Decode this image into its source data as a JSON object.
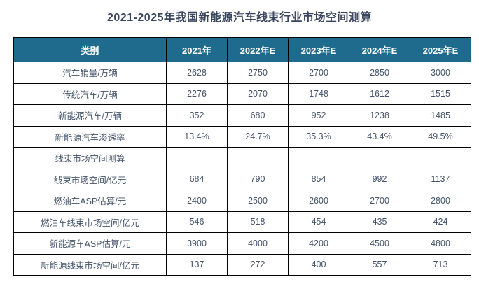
{
  "title": "2021-2025年我国新能源汽车线束行业市场空间测算",
  "colors": {
    "header_bg": "#1f6b8d",
    "header_text": "#ffffff",
    "title_text": "#3a4660",
    "cell_text": "#44546a",
    "border": "#000000",
    "page_bg": "#ffffff"
  },
  "chart_data": {
    "type": "table",
    "title": "2021-2025年我国新能源汽车线束行业市场空间测算",
    "columns": [
      "类别",
      "2021年",
      "2022年E",
      "2023年E",
      "2024年E",
      "2025年E"
    ],
    "rows": [
      {
        "label": "汽车销量/万辆",
        "values": [
          "2628",
          "2750",
          "2700",
          "2850",
          "3000"
        ]
      },
      {
        "label": "传统汽车/万辆",
        "values": [
          "2276",
          "2070",
          "1748",
          "1612",
          "1515"
        ]
      },
      {
        "label": "新能源汽车/万辆",
        "values": [
          "352",
          "680",
          "952",
          "1238",
          "1485"
        ]
      },
      {
        "label": "新能源汽车渗透率",
        "values": [
          "13.4%",
          "24.7%",
          "35.3%",
          "43.4%",
          "49.5%"
        ]
      },
      {
        "label": "线束市场空间测算",
        "values": [
          "",
          "",
          "",
          "",
          ""
        ]
      },
      {
        "label": "线束市场空间/亿元",
        "values": [
          "684",
          "790",
          "854",
          "992",
          "1137"
        ]
      },
      {
        "label": "燃油车ASP估算/元",
        "values": [
          "2400",
          "2500",
          "2600",
          "2700",
          "2800"
        ]
      },
      {
        "label": "燃油车线束市场空间/亿元",
        "values": [
          "546",
          "518",
          "454",
          "435",
          "424"
        ]
      },
      {
        "label": "新能源车ASP估算/元",
        "values": [
          "3900",
          "4000",
          "4200",
          "4500",
          "4800"
        ]
      },
      {
        "label": "新能源线束市场空间/亿元",
        "values": [
          "137",
          "272",
          "400",
          "557",
          "713"
        ]
      }
    ],
    "layout": {
      "grid": "all-borders",
      "header_row": true,
      "first_column_is_label": true,
      "value_alignment": "center"
    }
  }
}
